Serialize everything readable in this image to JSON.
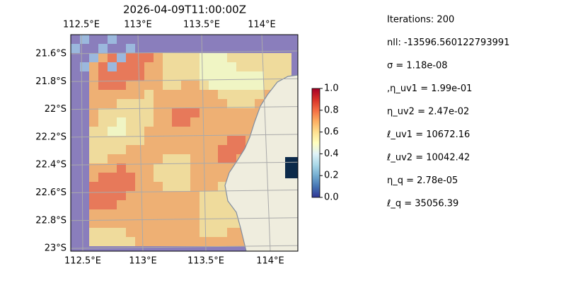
{
  "title": "2026-04-09T11:00:00Z",
  "map": {
    "lon_labels_top": [
      "112.5°E",
      "113°E",
      "113.5°E",
      "114°E"
    ],
    "lon_labels_bottom": [
      "112.5°E",
      "113°E",
      "113.5°E",
      "114°E"
    ],
    "lat_labels": [
      "21.6°S",
      "21.8°S",
      "22°S",
      "22.2°S",
      "22.4°S",
      "22.6°S",
      "22.8°S",
      "23°S"
    ]
  },
  "colorbar": {
    "lim": [
      0,
      1
    ],
    "ticks": [
      {
        "value": 0,
        "label": "0.0"
      },
      {
        "value": 0.2,
        "label": "0.2"
      },
      {
        "value": 0.4,
        "label": "0.4"
      },
      {
        "value": 0.6,
        "label": "0.6"
      },
      {
        "value": 0.8,
        "label": "0.8"
      },
      {
        "value": 1,
        "label": "1.0"
      }
    ]
  },
  "annotations": [
    "Iterations: 200",
    "nll: -13596.560122793991",
    "σ = 1.18e-08",
    ",η_uv1 = 1.99e-01",
    "η_uv2 = 2.47e-02",
    "ℓ_uv1 = 10672.16",
    "ℓ_uv2 = 10042.42",
    "η_q = 2.78e-05",
    "ℓ_q = 35056.39"
  ]
}
